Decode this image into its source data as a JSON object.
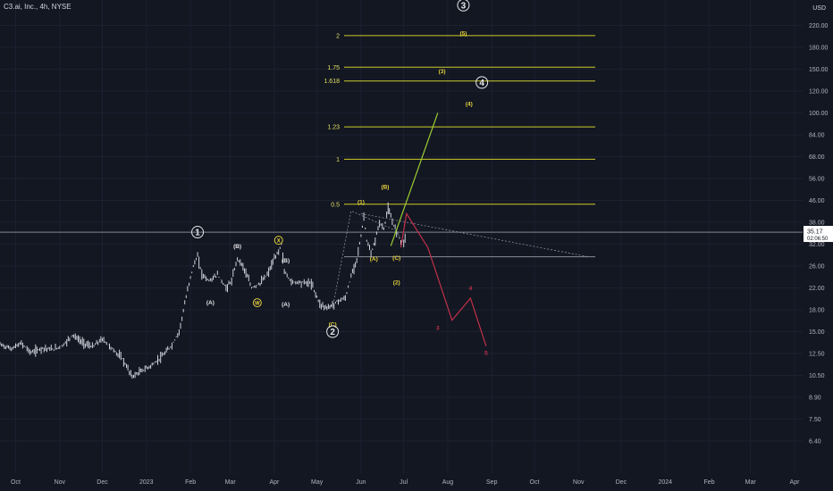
{
  "header": {
    "title": "C3.ai, Inc., 4h, NYSE",
    "currency": "USD"
  },
  "chart_data": {
    "type": "candlestick",
    "price_axis": {
      "scale": "log",
      "ticks": [
        "220.00",
        "180.00",
        "150.00",
        "120.00",
        "100.00",
        "84.00",
        "68.00",
        "56.00",
        "46.00",
        "38.00",
        "32.00",
        "26.00",
        "22.00",
        "18.00",
        "15.00",
        "12.50",
        "10.50",
        "8.90",
        "7.50",
        "6.40"
      ],
      "last_price": "35.17",
      "countdown": "02:06:50"
    },
    "time_axis": {
      "ticks": [
        "Oct",
        "Nov",
        "Dec",
        "2023",
        "Feb",
        "Mar",
        "Apr",
        "May",
        "Jun",
        "Jul",
        "Aug",
        "Sep",
        "Oct",
        "Nov",
        "Dec",
        "2024",
        "Feb",
        "Mar",
        "Apr"
      ]
    },
    "price_path": [
      [
        "2022-09-20",
        13.5
      ],
      [
        "2022-09-28",
        13.0
      ],
      [
        "2022-10-05",
        13.6
      ],
      [
        "2022-10-12",
        12.6
      ],
      [
        "2022-10-20",
        13.1
      ],
      [
        "2022-10-28",
        12.9
      ],
      [
        "2022-11-04",
        13.5
      ],
      [
        "2022-11-10",
        14.6
      ],
      [
        "2022-11-17",
        13.7
      ],
      [
        "2022-11-24",
        13.2
      ],
      [
        "2022-12-01",
        14.1
      ],
      [
        "2022-12-08",
        13.0
      ],
      [
        "2022-12-15",
        12.0
      ],
      [
        "2022-12-22",
        10.4
      ],
      [
        "2022-12-29",
        10.9
      ],
      [
        "2023-01-05",
        11.4
      ],
      [
        "2023-01-12",
        12.2
      ],
      [
        "2023-01-19",
        13.4
      ],
      [
        "2023-01-24",
        15.0
      ],
      [
        "2023-01-28",
        19.0
      ],
      [
        "2023-02-01",
        24.0
      ],
      [
        "2023-02-04",
        27.0
      ],
      [
        "2023-02-06",
        28.5
      ],
      [
        "2023-02-09",
        24.5
      ],
      [
        "2023-02-14",
        23.2
      ],
      [
        "2023-02-20",
        24.3
      ],
      [
        "2023-02-26",
        22.0
      ],
      [
        "2023-03-02",
        23.2
      ],
      [
        "2023-03-06",
        28.0
      ],
      [
        "2023-03-10",
        26.0
      ],
      [
        "2023-03-16",
        22.0
      ],
      [
        "2023-03-22",
        22.8
      ],
      [
        "2023-03-27",
        24.3
      ],
      [
        "2023-03-31",
        27.0
      ],
      [
        "2023-04-04",
        30.0
      ],
      [
        "2023-04-06",
        32.0
      ],
      [
        "2023-04-08",
        25.0
      ],
      [
        "2023-04-13",
        23.0
      ],
      [
        "2023-04-20",
        23.0
      ],
      [
        "2023-04-27",
        22.8
      ],
      [
        "2023-05-03",
        19.0
      ],
      [
        "2023-05-08",
        18.3
      ],
      [
        "2023-05-12",
        18.8
      ],
      [
        "2023-05-16",
        19.6
      ],
      [
        "2023-05-21",
        20.0
      ],
      [
        "2023-05-25",
        24.0
      ],
      [
        "2023-05-29",
        28.0
      ],
      [
        "2023-06-01",
        34.0
      ],
      [
        "2023-06-03",
        40.0
      ],
      [
        "2023-06-05",
        33.0
      ],
      [
        "2023-06-08",
        29.0
      ],
      [
        "2023-06-11",
        33.0
      ],
      [
        "2023-06-14",
        38.0
      ],
      [
        "2023-06-17",
        36.0
      ],
      [
        "2023-06-20",
        43.0
      ],
      [
        "2023-06-23",
        38.0
      ],
      [
        "2023-06-26",
        35.5
      ],
      [
        "2023-06-29",
        33.0
      ],
      [
        "2023-07-01",
        32.5
      ],
      [
        "2023-07-03",
        35.17
      ]
    ],
    "fib_levels": [
      {
        "label": "2",
        "price": 200.5
      },
      {
        "label": "1.75",
        "price": 152.5
      },
      {
        "label": "1.618",
        "price": 133.0
      },
      {
        "label": "1.23",
        "price": 89.5
      },
      {
        "label": "1",
        "price": 66.5
      },
      {
        "label": "0.5",
        "price": 44.5
      }
    ],
    "horizontal_lines": [
      {
        "name": "last-price-line",
        "price": 35.17
      },
      {
        "name": "support-line",
        "price": 28.4
      }
    ],
    "projections": {
      "bullish": [
        [
          "2023-06-22",
          31.5
        ],
        [
          "2023-07-25",
          100.0
        ]
      ],
      "bearish": [
        [
          "2023-06-29",
          31.0
        ],
        [
          "2023-07-03",
          41.0
        ],
        [
          "2023-07-18",
          31.0
        ],
        [
          "2023-08-04",
          16.5
        ],
        [
          "2023-08-17",
          20.0
        ],
        [
          "2023-08-28",
          13.3
        ]
      ],
      "trendline": [
        [
          "2023-06-01",
          41.0
        ],
        [
          "2023-11-08",
          28.4
        ]
      ],
      "wave_lines": [
        [
          "2023-05-12",
          18.3
        ],
        [
          "2023-05-25",
          42.0
        ],
        [
          "2023-06-26",
          35.5
        ],
        [
          "2023-06-28",
          34.0
        ]
      ]
    },
    "wave_labels": [
      {
        "text": "3",
        "style": "circle-white",
        "date": "2023-08-12",
        "price": 265.0
      },
      {
        "text": "(5)",
        "style": "yellow",
        "date": "2023-08-12",
        "price": 205.0
      },
      {
        "text": "(3)",
        "style": "yellow",
        "date": "2023-07-28",
        "price": 147.5
      },
      {
        "text": "4",
        "style": "circle-white",
        "date": "2023-08-25",
        "price": 131.0
      },
      {
        "text": "(4)",
        "style": "yellow",
        "date": "2023-08-16",
        "price": 108.0
      },
      {
        "text": "(B)",
        "style": "yellow",
        "date": "2023-06-18",
        "price": 52.0
      },
      {
        "text": "(1)",
        "style": "yellow",
        "date": "2023-06-01",
        "price": 45.5
      },
      {
        "text": "1",
        "style": "circle-white",
        "date": "2023-02-06",
        "price": 35.17
      },
      {
        "text": "X",
        "style": "circle-yellow",
        "date": "2023-04-04",
        "price": 33.0
      },
      {
        "text": "(B)",
        "style": "white",
        "date": "2023-03-06",
        "price": 31.5
      },
      {
        "text": "(B)",
        "style": "white",
        "date": "2023-04-09",
        "price": 27.5
      },
      {
        "text": "(A)",
        "style": "yellow",
        "date": "2023-06-10",
        "price": 27.9
      },
      {
        "text": "(C)",
        "style": "yellow",
        "date": "2023-06-26",
        "price": 28.2
      },
      {
        "text": "(2)",
        "style": "yellow",
        "date": "2023-06-26",
        "price": 23.0
      },
      {
        "text": "4",
        "style": "red",
        "date": "2023-08-17",
        "price": 22.0
      },
      {
        "text": "(A)",
        "style": "white",
        "date": "2023-02-15",
        "price": 19.3
      },
      {
        "text": "W",
        "style": "circle-yellow",
        "date": "2023-03-20",
        "price": 19.2
      },
      {
        "text": "(A)",
        "style": "white",
        "date": "2023-04-09",
        "price": 19.0
      },
      {
        "text": "3",
        "style": "red",
        "date": "2023-07-25",
        "price": 15.5
      },
      {
        "text": "(C)",
        "style": "yellow",
        "date": "2023-05-12",
        "price": 16.0
      },
      {
        "text": "2",
        "style": "circle-white",
        "date": "2023-05-12",
        "price": 15.0
      },
      {
        "text": "5",
        "style": "red",
        "date": "2023-08-28",
        "price": 12.6
      }
    ],
    "colors": {
      "background": "#131722",
      "price": "#d1d4dc",
      "fib": "#cccc29",
      "fib_label": "#e0e060",
      "yellow_label": "#e6d23c",
      "red_projection": "#c2304a",
      "green_projection": "#9acd32",
      "grid": "#1c2030",
      "axis_text": "#b2b5be",
      "last_price_box": "#ffffff"
    }
  }
}
